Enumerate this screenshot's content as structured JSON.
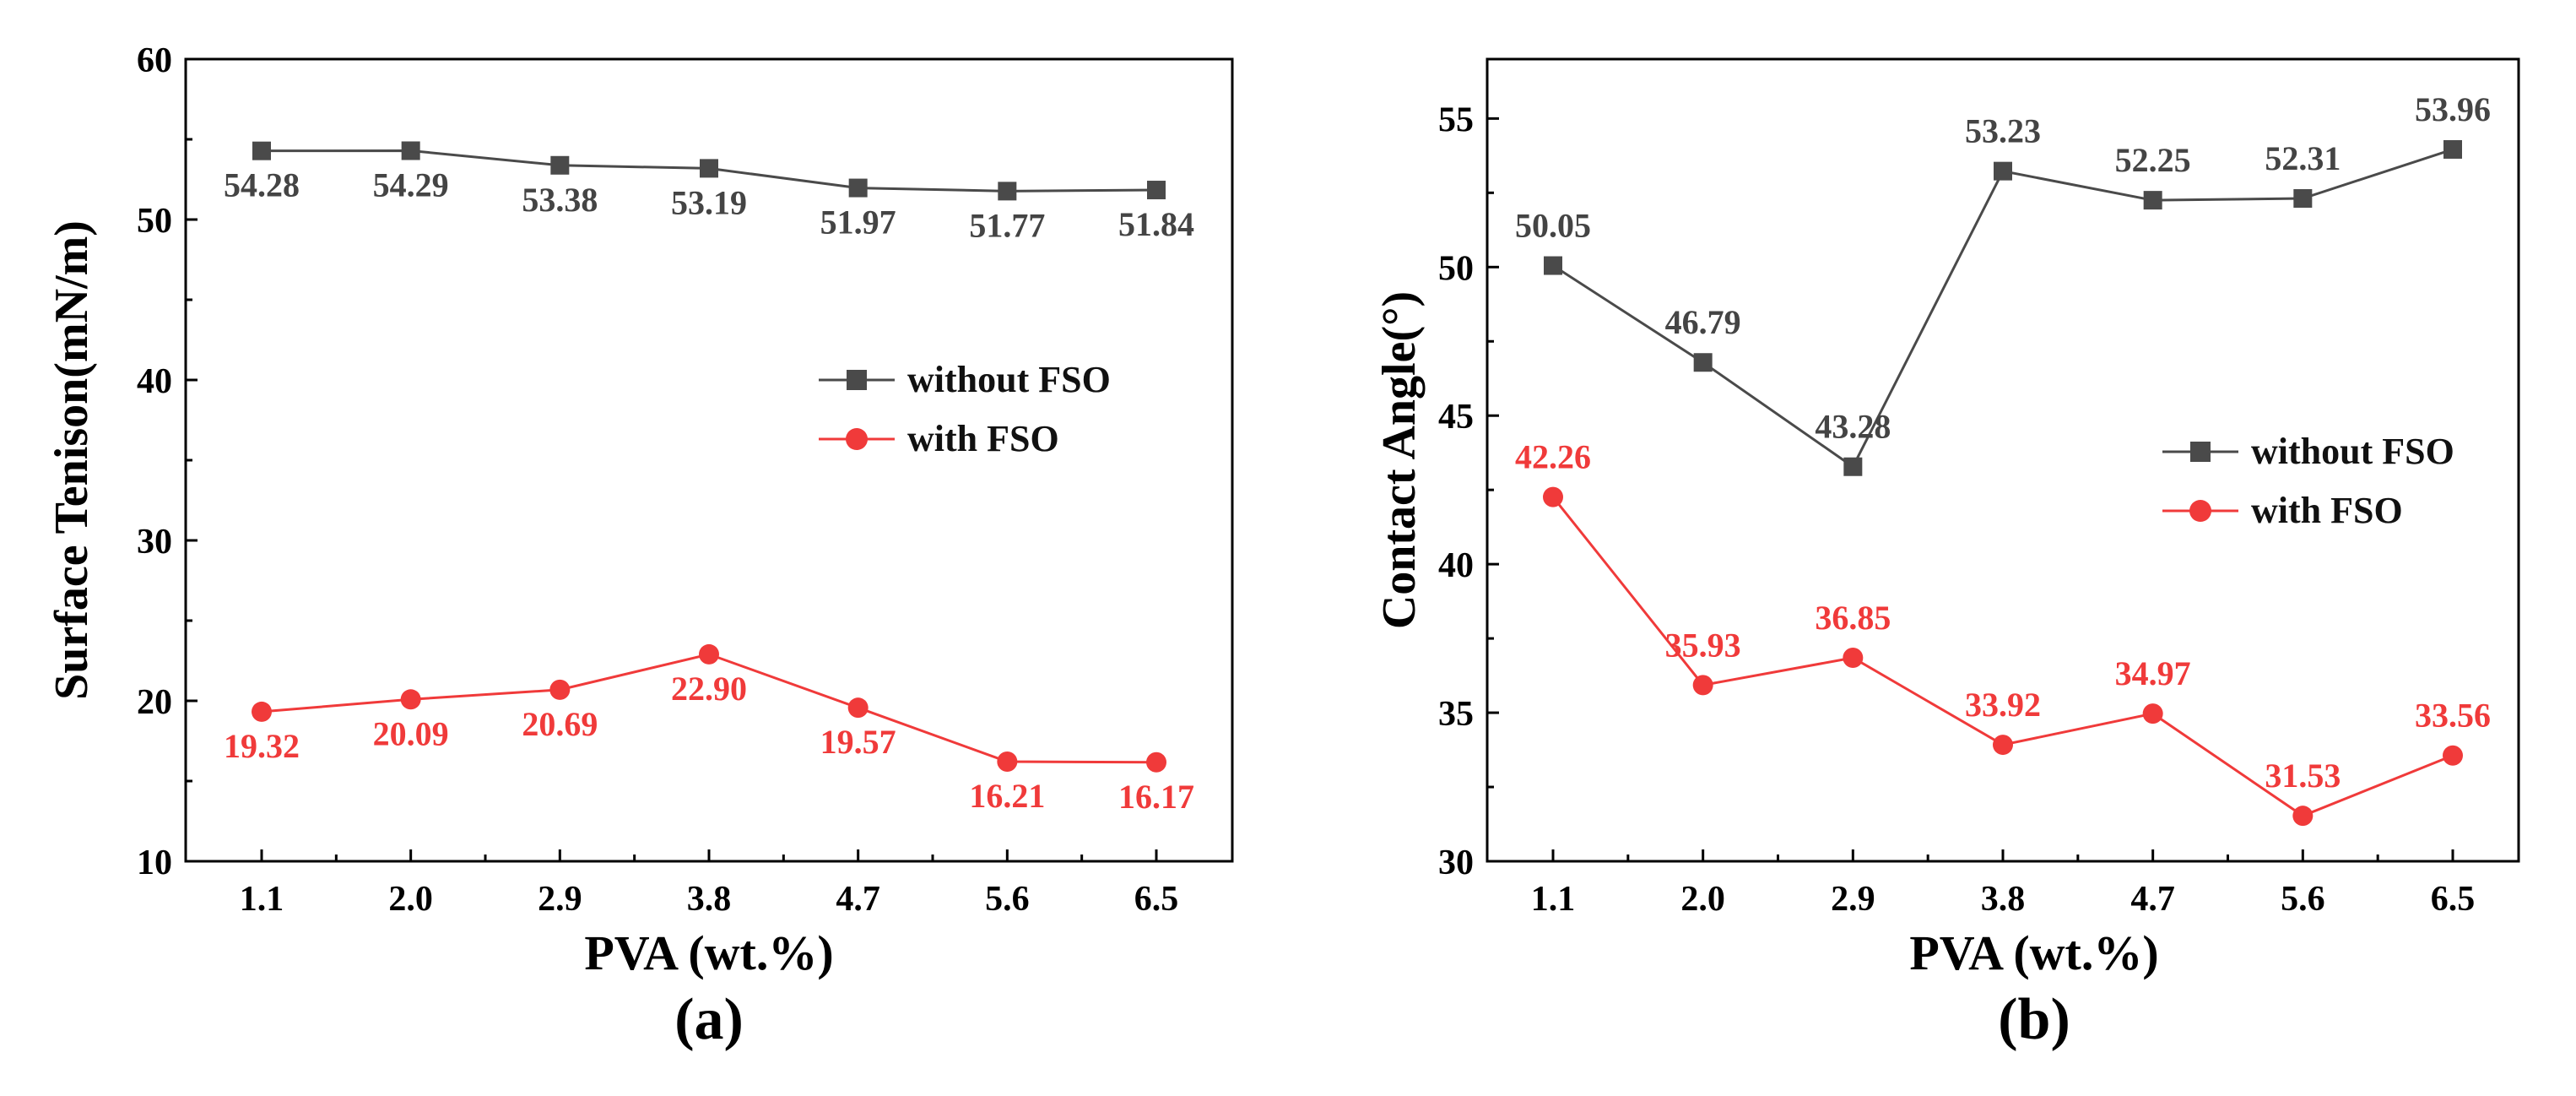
{
  "chart_data": [
    {
      "type": "line",
      "panel_label": "(a)",
      "title": "",
      "xlabel": "PVA (wt.%)",
      "ylabel": "Surface Tenison(mN/m)",
      "categories": [
        "1.1",
        "2.0",
        "2.9",
        "3.8",
        "4.7",
        "5.6",
        "6.5"
      ],
      "ylim": [
        10,
        60
      ],
      "yticks": [
        "10",
        "20",
        "30",
        "40",
        "50",
        "60"
      ],
      "grid": false,
      "legend_position": "center-right",
      "series": [
        {
          "name": "without FSO",
          "color": "#4a4a4a",
          "marker": "square",
          "values": [
            54.28,
            54.29,
            53.38,
            53.19,
            51.97,
            51.77,
            51.84
          ],
          "labels": [
            "54.28",
            "54.29",
            "53.38",
            "53.19",
            "51.97",
            "51.77",
            "51.84"
          ],
          "label_position": "below"
        },
        {
          "name": "with FSO",
          "color": "#f03a3a",
          "marker": "circle",
          "values": [
            19.32,
            20.09,
            20.69,
            22.9,
            19.57,
            16.21,
            16.17
          ],
          "labels": [
            "19.32",
            "20.09",
            "20.69",
            "22.90",
            "19.57",
            "16.21",
            "16.17"
          ],
          "label_position": "below"
        }
      ]
    },
    {
      "type": "line",
      "panel_label": "(b)",
      "title": "",
      "xlabel": "PVA (wt.%)",
      "ylabel": "Contact Angle(°)",
      "categories": [
        "1.1",
        "2.0",
        "2.9",
        "3.8",
        "4.7",
        "5.6",
        "6.5"
      ],
      "ylim": [
        30,
        57
      ],
      "yticks": [
        "30",
        "35",
        "40",
        "45",
        "50",
        "55"
      ],
      "grid": false,
      "legend_position": "center-right",
      "series": [
        {
          "name": "without FSO",
          "color": "#4a4a4a",
          "marker": "square",
          "values": [
            50.05,
            46.79,
            43.28,
            53.23,
            52.25,
            52.31,
            53.96
          ],
          "labels": [
            "50.05",
            "46.79",
            "43.28",
            "53.23",
            "52.25",
            "52.31",
            "53.96"
          ],
          "label_position": "above"
        },
        {
          "name": "with FSO",
          "color": "#f03a3a",
          "marker": "circle",
          "values": [
            42.26,
            35.93,
            36.85,
            33.92,
            34.97,
            31.53,
            33.56
          ],
          "labels": [
            "42.26",
            "35.93",
            "36.85",
            "33.92",
            "34.97",
            "31.53",
            "33.56"
          ],
          "label_position": "above"
        }
      ]
    }
  ]
}
